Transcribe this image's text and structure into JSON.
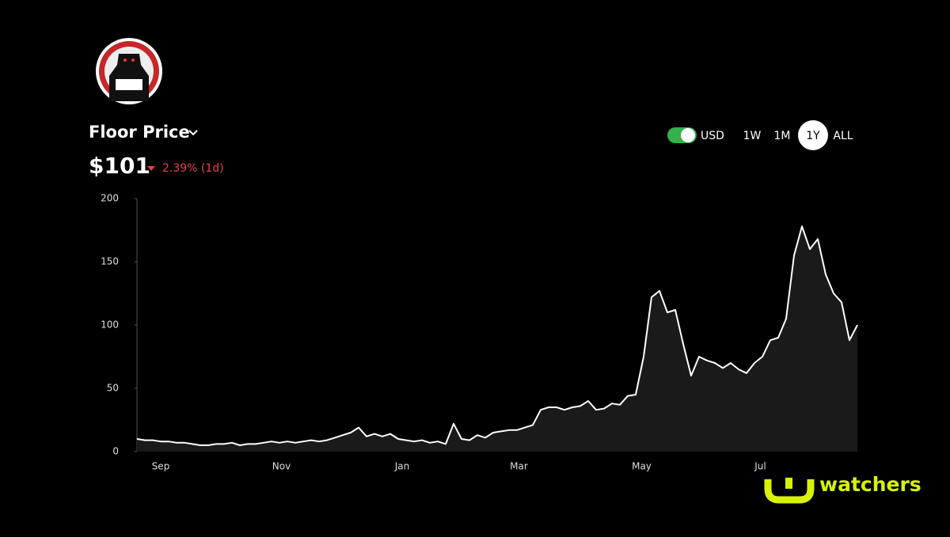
{
  "header": {
    "title": "Floor Price",
    "price": "$101",
    "change": "2.39% (1d)"
  },
  "controls": {
    "currency": "USD",
    "ranges": [
      "1W",
      "1M",
      "1Y",
      "ALL"
    ],
    "active_range": "1Y"
  },
  "brand": "watchers",
  "chart_data": {
    "type": "line",
    "x": [
      0,
      4,
      8,
      12,
      16,
      20,
      24,
      28,
      32,
      36,
      40,
      44,
      48,
      52,
      56,
      60,
      64,
      68,
      72,
      76,
      80,
      84,
      88,
      92,
      96,
      100,
      104,
      108,
      112,
      116,
      120,
      124,
      128,
      132,
      136,
      140,
      144,
      148,
      152,
      156,
      160,
      164,
      168,
      172,
      176,
      180,
      184,
      188,
      192,
      196,
      200,
      204,
      208,
      212,
      216,
      220,
      224,
      228,
      232,
      236,
      240,
      244,
      248,
      252,
      256,
      260,
      264,
      268,
      272,
      276,
      280,
      284,
      288,
      292,
      296,
      300,
      304,
      308,
      312,
      316,
      320,
      324,
      328,
      332,
      336,
      340,
      344,
      348,
      352,
      356,
      360,
      364
    ],
    "values": [
      10,
      9,
      9,
      8,
      8,
      7,
      7,
      6,
      5,
      5,
      6,
      6,
      7,
      5,
      6,
      6,
      7,
      8,
      7,
      8,
      7,
      8,
      9,
      8,
      9,
      11,
      13,
      15,
      19,
      12,
      14,
      12,
      14,
      10,
      9,
      8,
      9,
      7,
      8,
      6,
      22,
      10,
      9,
      13,
      11,
      15,
      16,
      17,
      17,
      19,
      21,
      33,
      35,
      35,
      33,
      35,
      36,
      40,
      33,
      34,
      38,
      37,
      44,
      45,
      75,
      122,
      127,
      110,
      112,
      85,
      60,
      75,
      72,
      70,
      66,
      70,
      65,
      62,
      70,
      75,
      88,
      90,
      105,
      155,
      178,
      160,
      168,
      140,
      125,
      118,
      88,
      100
    ],
    "color": "#ffffff",
    "fill": "#1a1a1a",
    "xlim": [
      0,
      364
    ],
    "xticks": [
      {
        "value": 12,
        "label": "Sep"
      },
      {
        "value": 73,
        "label": "Nov"
      },
      {
        "value": 134,
        "label": "Jan"
      },
      {
        "value": 193,
        "label": "Mar"
      },
      {
        "value": 255,
        "label": "May"
      },
      {
        "value": 315,
        "label": "Jul"
      }
    ],
    "ylim": [
      0,
      200
    ],
    "yticks": [
      0,
      50,
      100,
      150,
      200
    ],
    "grid": false
  }
}
